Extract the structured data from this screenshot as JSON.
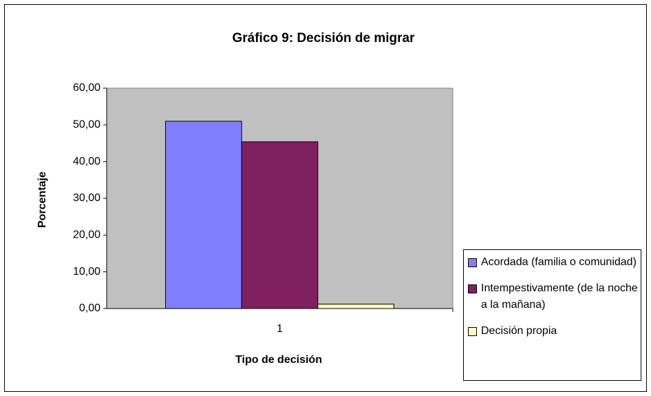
{
  "chart_data": {
    "type": "bar",
    "title": "Gráfico 9: Decisión de migrar",
    "x_label": "Tipo de decisión",
    "y_label": "Porcentaje",
    "categories": [
      "1"
    ],
    "series": [
      {
        "name": "Acordada (familia o comunidad)",
        "color": "#8080ff",
        "values": [
          51.0
        ]
      },
      {
        "name": "Intempestivamente (de la noche a la mañana)",
        "color": "#802060",
        "values": [
          45.4
        ]
      },
      {
        "name": "Decisión propia",
        "color": "#ffffc0",
        "values": [
          1.2
        ]
      }
    ],
    "ylim": [
      0,
      60
    ],
    "yticks": [
      {
        "value": 0,
        "label": "0,00"
      },
      {
        "value": 10,
        "label": "10,00"
      },
      {
        "value": 20,
        "label": "20,00"
      },
      {
        "value": 30,
        "label": "30,00"
      },
      {
        "value": 40,
        "label": "40,00"
      },
      {
        "value": 50,
        "label": "50,00"
      },
      {
        "value": 60,
        "label": "60,00"
      }
    ],
    "grid": false,
    "legend": "right",
    "plot_background": "#c0c0c0"
  }
}
